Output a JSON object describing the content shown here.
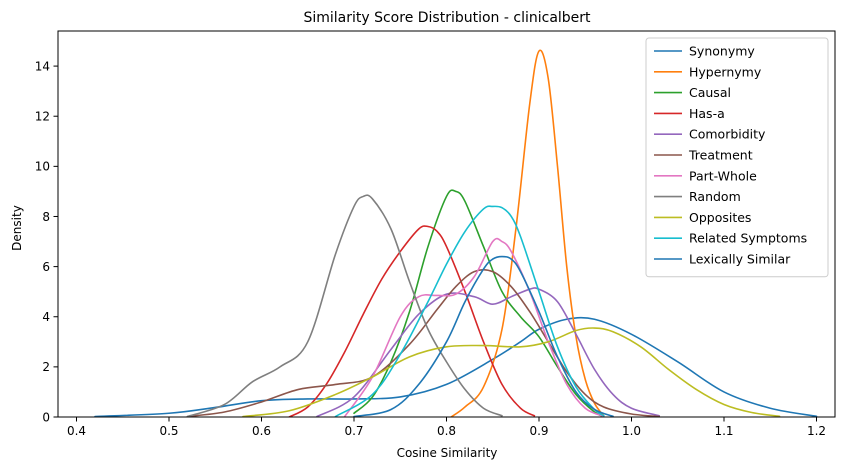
{
  "chart_data": {
    "type": "line",
    "title": "Similarity Score Distribution - clinicalbert",
    "xlabel": "Cosine Similarity",
    "ylabel": "Density",
    "xlim": [
      0.38,
      1.22
    ],
    "ylim": [
      0,
      15.4
    ],
    "xticks": [
      0.4,
      0.5,
      0.6,
      0.7,
      0.8,
      0.9,
      1.0,
      1.1,
      1.2
    ],
    "xtick_labels": [
      "0.4",
      "0.5",
      "0.6",
      "0.7",
      "0.8",
      "0.9",
      "1.0",
      "1.1",
      "1.2"
    ],
    "yticks": [
      0,
      2,
      4,
      6,
      8,
      10,
      12,
      14
    ],
    "ytick_labels": [
      "0",
      "2",
      "4",
      "6",
      "8",
      "10",
      "12",
      "14"
    ],
    "grid": false,
    "legend_position": "top-right",
    "series": [
      {
        "name": "Synonymy",
        "color": "#1f77b4",
        "x": [
          0.42,
          0.5,
          0.55,
          0.6,
          0.65,
          0.7,
          0.75,
          0.8,
          0.85,
          0.88,
          0.9,
          0.93,
          0.96,
          1.0,
          1.05,
          1.1,
          1.15,
          1.2
        ],
        "y": [
          0.02,
          0.15,
          0.38,
          0.65,
          0.72,
          0.72,
          0.8,
          1.3,
          2.3,
          3.0,
          3.5,
          3.9,
          3.9,
          3.3,
          2.2,
          1.0,
          0.35,
          0.03
        ]
      },
      {
        "name": "Hypernymy",
        "color": "#ff7f0e",
        "x": [
          0.805,
          0.82,
          0.84,
          0.86,
          0.875,
          0.89,
          0.9,
          0.91,
          0.92,
          0.93,
          0.94,
          0.95,
          0.96,
          0.97
        ],
        "y": [
          0.0,
          0.4,
          1.2,
          3.5,
          7.5,
          12.5,
          14.6,
          13.5,
          10.0,
          6.0,
          3.2,
          1.5,
          0.55,
          0.05
        ]
      },
      {
        "name": "Causal",
        "color": "#2ca02c",
        "x": [
          0.7,
          0.72,
          0.74,
          0.76,
          0.78,
          0.8,
          0.81,
          0.82,
          0.84,
          0.86,
          0.88,
          0.9,
          0.92,
          0.94,
          0.96,
          0.97
        ],
        "y": [
          0.15,
          0.8,
          2.2,
          4.2,
          6.8,
          8.8,
          9.0,
          8.6,
          6.8,
          5.0,
          4.0,
          3.2,
          2.0,
          0.9,
          0.2,
          0.02
        ]
      },
      {
        "name": "Has-a",
        "color": "#d62728",
        "x": [
          0.63,
          0.65,
          0.67,
          0.69,
          0.71,
          0.73,
          0.75,
          0.77,
          0.78,
          0.79,
          0.8,
          0.82,
          0.84,
          0.86,
          0.88,
          0.895
        ],
        "y": [
          0.0,
          0.4,
          1.3,
          2.6,
          4.1,
          5.5,
          6.6,
          7.5,
          7.6,
          7.4,
          6.8,
          5.0,
          3.0,
          1.3,
          0.35,
          0.05
        ]
      },
      {
        "name": "Comorbidity",
        "color": "#9467bd",
        "x": [
          0.66,
          0.7,
          0.74,
          0.77,
          0.8,
          0.83,
          0.85,
          0.87,
          0.89,
          0.9,
          0.92,
          0.94,
          0.96,
          0.98,
          1.0,
          1.03
        ],
        "y": [
          0.02,
          0.8,
          2.7,
          4.1,
          4.9,
          4.8,
          4.5,
          4.8,
          5.1,
          5.1,
          4.6,
          3.3,
          1.9,
          0.9,
          0.35,
          0.05
        ]
      },
      {
        "name": "Treatment",
        "color": "#8c564b",
        "x": [
          0.52,
          0.56,
          0.6,
          0.64,
          0.68,
          0.72,
          0.76,
          0.79,
          0.81,
          0.83,
          0.85,
          0.87,
          0.89,
          0.91,
          0.93,
          0.95,
          0.97,
          1.0,
          1.03
        ],
        "y": [
          0.02,
          0.2,
          0.6,
          1.1,
          1.3,
          1.6,
          2.9,
          4.3,
          5.2,
          5.8,
          5.8,
          5.2,
          4.2,
          3.0,
          1.8,
          0.9,
          0.4,
          0.12,
          0.02
        ]
      },
      {
        "name": "Part-Whole",
        "color": "#e377c2",
        "x": [
          0.69,
          0.72,
          0.75,
          0.77,
          0.79,
          0.81,
          0.83,
          0.85,
          0.86,
          0.87,
          0.89,
          0.91,
          0.93,
          0.95,
          0.97
        ],
        "y": [
          0.02,
          1.6,
          4.0,
          4.8,
          4.85,
          4.9,
          5.6,
          7.0,
          7.0,
          6.6,
          5.0,
          3.0,
          1.3,
          0.35,
          0.03
        ]
      },
      {
        "name": "Random",
        "color": "#7f7f7f",
        "x": [
          0.52,
          0.56,
          0.59,
          0.62,
          0.65,
          0.68,
          0.7,
          0.71,
          0.72,
          0.74,
          0.76,
          0.78,
          0.8,
          0.82,
          0.84,
          0.86
        ],
        "y": [
          0.02,
          0.5,
          1.4,
          2.0,
          3.0,
          6.5,
          8.4,
          8.8,
          8.7,
          7.5,
          5.4,
          3.5,
          2.2,
          1.1,
          0.35,
          0.05
        ]
      },
      {
        "name": "Opposites",
        "color": "#bcbd22",
        "x": [
          0.58,
          0.63,
          0.68,
          0.72,
          0.76,
          0.8,
          0.84,
          0.88,
          0.91,
          0.94,
          0.96,
          0.98,
          1.01,
          1.04,
          1.07,
          1.1,
          1.13,
          1.16
        ],
        "y": [
          0.02,
          0.25,
          0.9,
          1.6,
          2.4,
          2.8,
          2.85,
          2.8,
          3.0,
          3.45,
          3.55,
          3.4,
          2.8,
          1.9,
          1.1,
          0.5,
          0.18,
          0.03
        ]
      },
      {
        "name": "Related Symptoms",
        "color": "#17becf",
        "x": [
          0.68,
          0.72,
          0.75,
          0.78,
          0.8,
          0.82,
          0.84,
          0.85,
          0.86,
          0.87,
          0.88,
          0.9,
          0.92,
          0.94,
          0.96,
          0.97
        ],
        "y": [
          0.02,
          0.9,
          2.5,
          4.6,
          6.1,
          7.4,
          8.3,
          8.4,
          8.35,
          8.0,
          7.2,
          5.0,
          2.8,
          1.2,
          0.3,
          0.05
        ]
      },
      {
        "name": "Lexically Similar",
        "color": "#1f77b4",
        "x": [
          0.7,
          0.74,
          0.77,
          0.8,
          0.82,
          0.84,
          0.85,
          0.86,
          0.87,
          0.88,
          0.9,
          0.92,
          0.94,
          0.96,
          0.98
        ],
        "y": [
          0.02,
          0.3,
          1.3,
          3.0,
          4.6,
          5.9,
          6.3,
          6.4,
          6.3,
          5.8,
          4.2,
          2.4,
          1.0,
          0.3,
          0.03
        ]
      }
    ]
  }
}
